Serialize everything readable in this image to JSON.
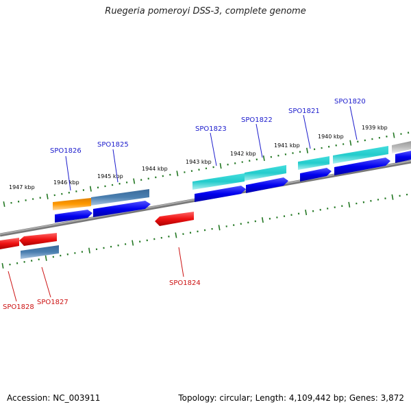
{
  "title": "Ruegeria pomeroyi DSS-3, complete genome",
  "footer": {
    "accession": "Accession: NC_003911",
    "topology": "Topology: circular; Length: 4,109,442 bp; Genes: 3,872"
  },
  "kbp_labels": [
    "1947 kbp",
    "1946 kbp",
    "1945 kbp",
    "1944 kbp",
    "1943 kbp",
    "1942 kbp",
    "1941 kbp",
    "1940 kbp",
    "1939 kbp"
  ],
  "forward_genes": [
    "SPO1826",
    "SPO1825",
    "SPO1823",
    "SPO1822",
    "SPO1821",
    "SPO1820"
  ],
  "reverse_genes": [
    "SPO1828",
    "SPO1827",
    "SPO1824"
  ],
  "colors": {
    "forward_label": "#1a1acc",
    "reverse_label": "#cc1111",
    "gene_forward": "#0000ee",
    "gene_reverse": "#ee1111",
    "cog_orange": "#ff9900",
    "cog_steelblue": "#4a7fb0",
    "cog_cyan": "#22cccc",
    "cog_grey": "#bbbbbb",
    "tick": "#227722",
    "backbone": "#888888"
  }
}
